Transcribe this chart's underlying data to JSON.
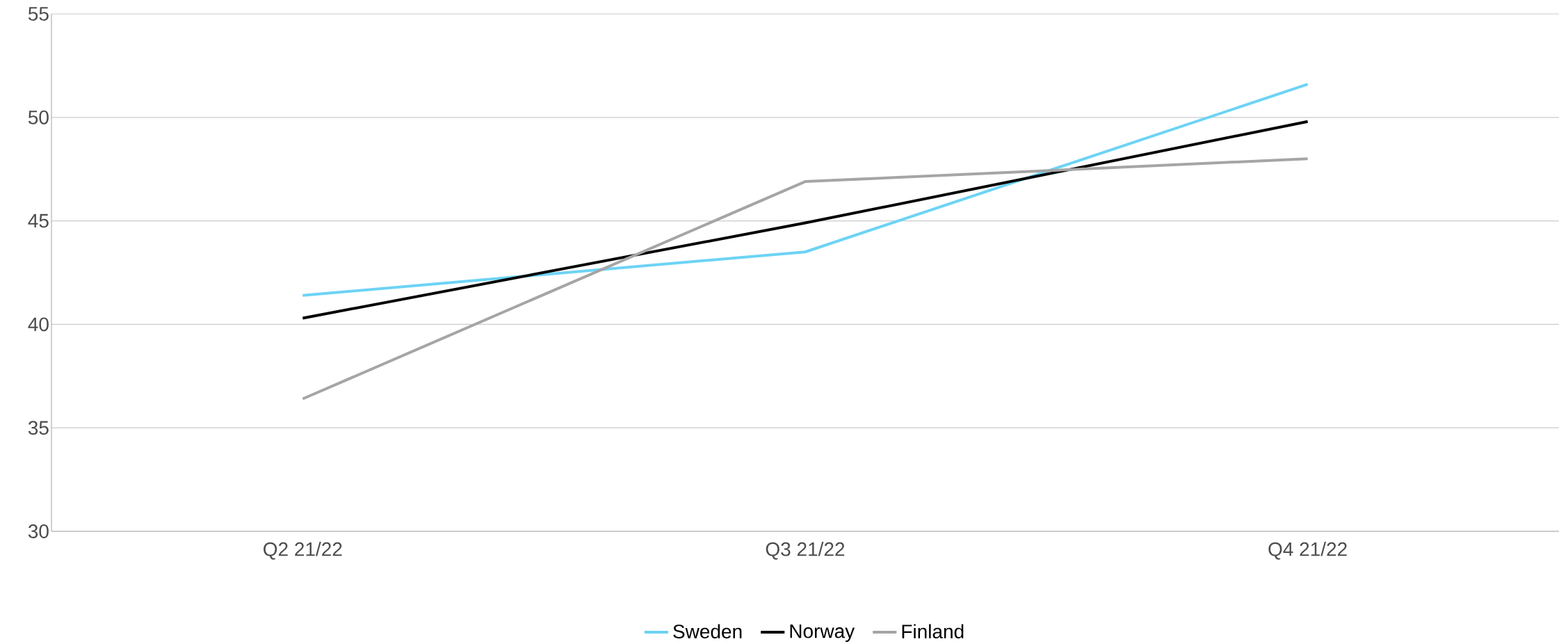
{
  "chart_data": {
    "type": "line",
    "categories": [
      "Q2 21/22",
      "Q3 21/22",
      "Q4 21/22"
    ],
    "series": [
      {
        "name": "Sweden",
        "color": "#6dd3f5",
        "values": [
          41.4,
          43.5,
          51.6
        ]
      },
      {
        "name": "Norway",
        "color": "#000000",
        "values": [
          40.3,
          44.9,
          49.8
        ]
      },
      {
        "name": "Finland",
        "color": "#a5a5a5",
        "values": [
          36.4,
          46.9,
          48.0
        ]
      }
    ],
    "ylim": [
      30,
      55
    ],
    "yticks": [
      30,
      35,
      40,
      45,
      50,
      55
    ],
    "grid": "y",
    "legend": "bottom",
    "marker": "none",
    "line_style": "solid"
  }
}
